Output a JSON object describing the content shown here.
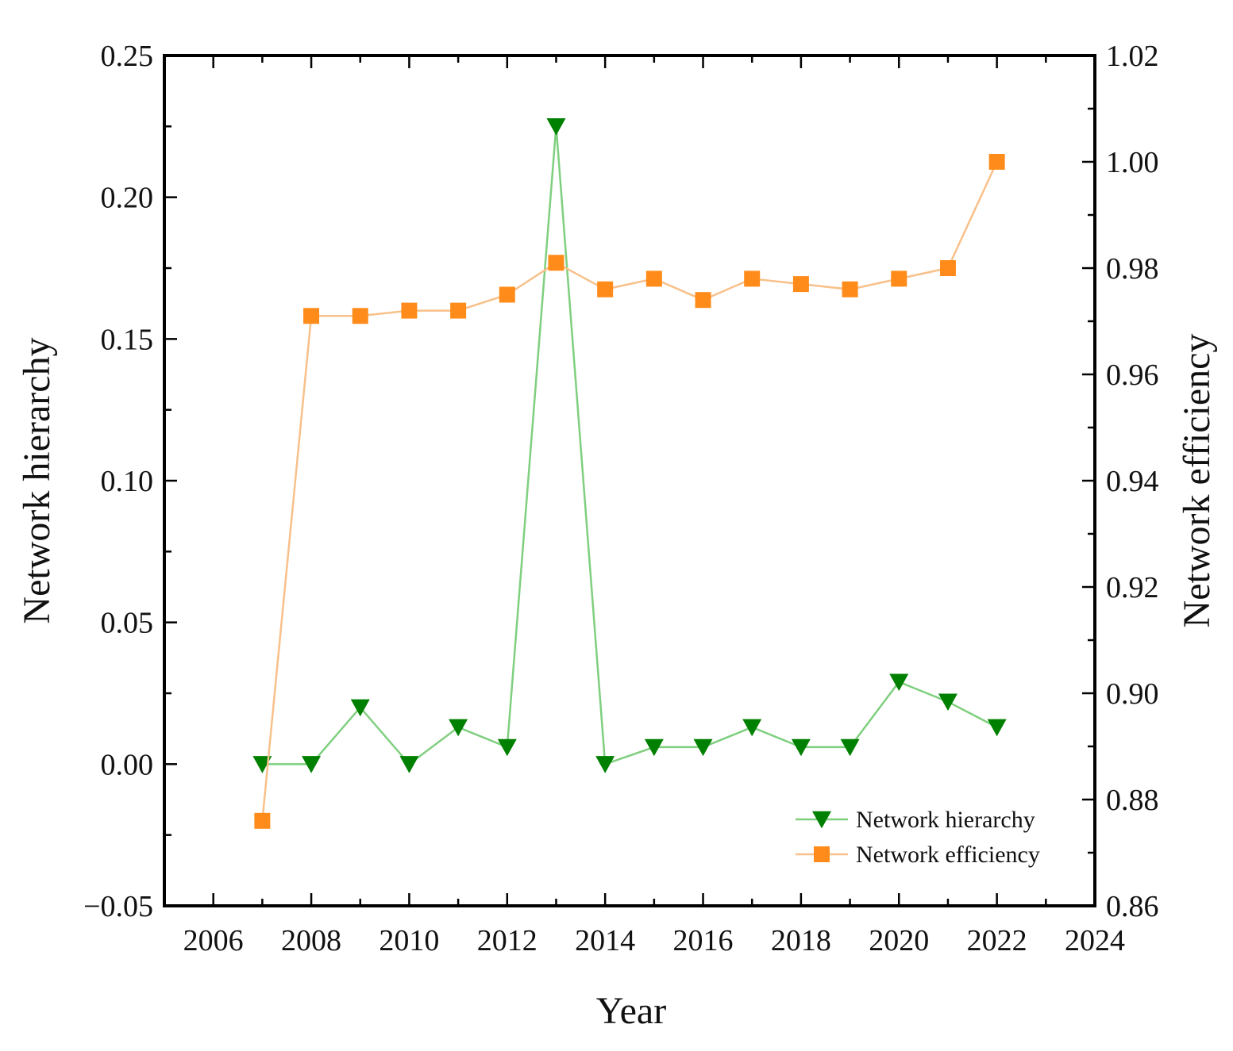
{
  "chart_data": {
    "type": "line",
    "title": "",
    "xlabel": "Year",
    "ylabel_left": "Network hierarchy",
    "ylabel_right": "Network efficiency",
    "xlim": [
      2005,
      2024
    ],
    "x_ticks": [
      2006,
      2008,
      2010,
      2012,
      2014,
      2016,
      2018,
      2020,
      2022,
      2024
    ],
    "ylim_left": [
      -0.05,
      0.25
    ],
    "y_ticks_left": [
      "−0.05",
      "0.00",
      "0.05",
      "0.10",
      "0.15",
      "0.20",
      "0.25"
    ],
    "y_tick_values_left": [
      -0.05,
      0.0,
      0.05,
      0.1,
      0.15,
      0.2,
      0.25
    ],
    "ylim_right": [
      0.86,
      1.02
    ],
    "y_ticks_right": [
      "0.86",
      "0.88",
      "0.90",
      "0.92",
      "0.94",
      "0.96",
      "0.98",
      "1.00",
      "1.02"
    ],
    "y_tick_values_right": [
      0.86,
      0.88,
      0.9,
      0.92,
      0.94,
      0.96,
      0.98,
      1.0,
      1.02
    ],
    "grid": false,
    "legend_position": "bottom-right",
    "x": [
      2007,
      2008,
      2009,
      2010,
      2011,
      2012,
      2013,
      2014,
      2015,
      2016,
      2017,
      2018,
      2019,
      2020,
      2021,
      2022
    ],
    "series": [
      {
        "name": "Network hierarchy",
        "axis": "left",
        "color": "#008000",
        "line_color": "#7fcf7f",
        "marker": "triangle-down",
        "values": [
          0.0,
          0.0,
          0.02,
          0.0,
          0.013,
          0.006,
          0.225,
          0.0,
          0.006,
          0.006,
          0.013,
          0.006,
          0.006,
          0.029,
          0.022,
          0.013
        ]
      },
      {
        "name": "Network efficiency",
        "axis": "right",
        "color": "#ff8c1a",
        "line_color": "#f8c08a",
        "marker": "square",
        "values": [
          0.876,
          0.971,
          0.971,
          0.972,
          0.972,
          0.975,
          0.981,
          0.976,
          0.978,
          0.974,
          0.978,
          0.977,
          0.976,
          0.978,
          0.98,
          1.0
        ]
      }
    ]
  }
}
